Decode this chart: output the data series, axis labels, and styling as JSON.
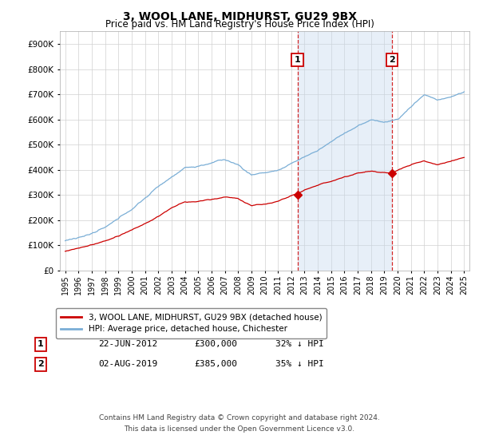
{
  "title": "3, WOOL LANE, MIDHURST, GU29 9BX",
  "subtitle": "Price paid vs. HM Land Registry's House Price Index (HPI)",
  "legend_property": "3, WOOL LANE, MIDHURST, GU29 9BX (detached house)",
  "legend_hpi": "HPI: Average price, detached house, Chichester",
  "footer_line1": "Contains HM Land Registry data © Crown copyright and database right 2024.",
  "footer_line2": "This data is licensed under the Open Government Licence v3.0.",
  "property_color": "#cc0000",
  "hpi_color": "#7aaed6",
  "sale1_date": "22-JUN-2012",
  "sale1_price": 300000,
  "sale1_label": "32% ↓ HPI",
  "sale1_x": 2012.47,
  "sale2_date": "02-AUG-2019",
  "sale2_price": 385000,
  "sale2_label": "35% ↓ HPI",
  "sale2_x": 2019.58,
  "ylim": [
    0,
    950000
  ],
  "yticks": [
    0,
    100000,
    200000,
    300000,
    400000,
    500000,
    600000,
    700000,
    800000,
    900000
  ],
  "background_color": "#ffffff",
  "grid_color": "#d0d0d0",
  "dashed_color": "#cc0000",
  "shade_color": "#c5d9ef",
  "shade_alpha": 0.4
}
